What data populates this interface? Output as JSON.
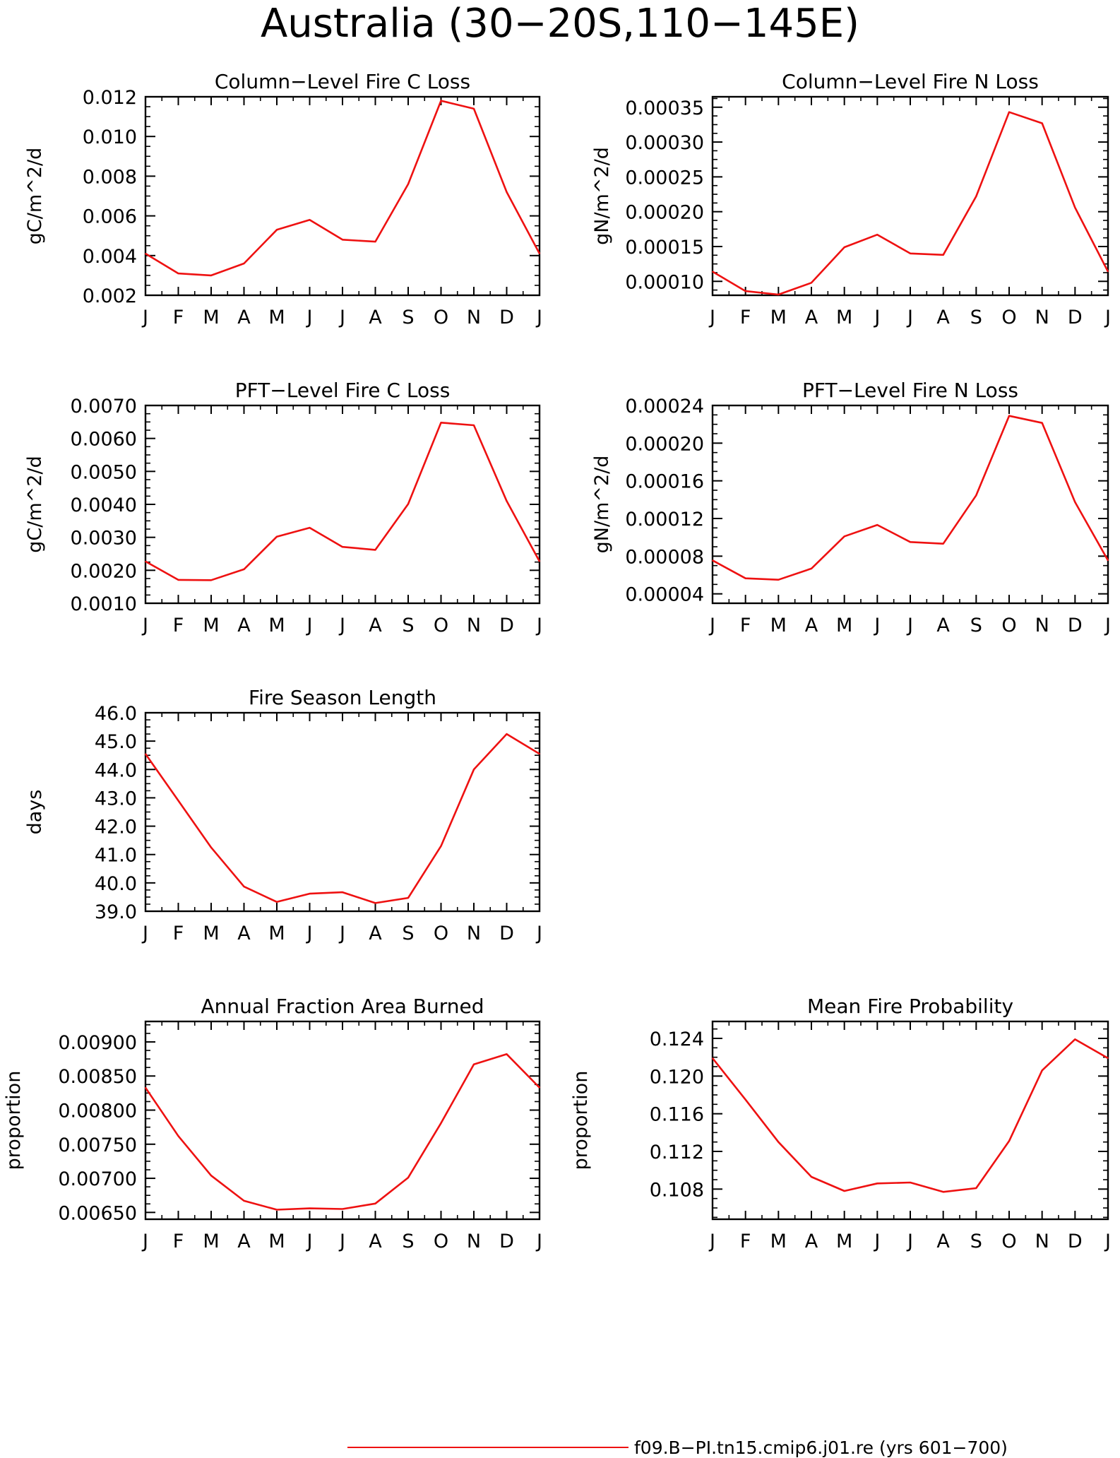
{
  "figure": {
    "title": "Australia (30−20S,110−145E)",
    "line_color": "#ee1111",
    "legend": {
      "label": "f09.B−PI.tn15.cmip6.j01.re (yrs 601−700)"
    }
  },
  "chart_data": [
    {
      "type": "line",
      "title": "Column−Level Fire C Loss",
      "ylabel": "gC/m^2/d",
      "ylim": [
        0.002,
        0.012
      ],
      "yticks": [
        "0.002",
        "0.004",
        "0.006",
        "0.008",
        "0.010",
        "0.012"
      ],
      "x": [
        "J",
        "F",
        "M",
        "A",
        "M",
        "J",
        "J",
        "A",
        "S",
        "O",
        "N",
        "D",
        "J"
      ],
      "series": [
        {
          "values": [
            0.0041,
            0.0031,
            0.003,
            0.0036,
            0.0053,
            0.0058,
            0.0048,
            0.0047,
            0.0076,
            0.0118,
            0.0114,
            0.0072,
            0.0041
          ]
        }
      ]
    },
    {
      "type": "line",
      "title": "Column−Level Fire N Loss",
      "ylabel": "gN/m^2/d",
      "ylim": [
        8e-05,
        0.000365
      ],
      "yticks": [
        "0.00010",
        "0.00015",
        "0.00020",
        "0.00025",
        "0.00030",
        "0.00035"
      ],
      "x": [
        "J",
        "F",
        "M",
        "A",
        "M",
        "J",
        "J",
        "A",
        "S",
        "O",
        "N",
        "D",
        "J"
      ],
      "series": [
        {
          "values": [
            0.000114,
            8.6e-05,
            8.1e-05,
            9.8e-05,
            0.000149,
            0.000167,
            0.00014,
            0.000138,
            0.000222,
            0.000343,
            0.000327,
            0.000206,
            0.000114
          ]
        }
      ]
    },
    {
      "type": "line",
      "title": "PFT−Level Fire C Loss",
      "ylabel": "gC/m^2/d",
      "ylim": [
        0.001,
        0.007
      ],
      "yticks": [
        "0.0010",
        "0.0020",
        "0.0030",
        "0.0040",
        "0.0050",
        "0.0060",
        "0.0070"
      ],
      "x": [
        "J",
        "F",
        "M",
        "A",
        "M",
        "J",
        "J",
        "A",
        "S",
        "O",
        "N",
        "D",
        "J"
      ],
      "series": [
        {
          "values": [
            0.00227,
            0.00171,
            0.0017,
            0.00203,
            0.00302,
            0.00329,
            0.00271,
            0.00262,
            0.00401,
            0.00648,
            0.0064,
            0.0041,
            0.00227
          ]
        }
      ]
    },
    {
      "type": "line",
      "title": "PFT−Level Fire N Loss",
      "ylabel": "gN/m^2/d",
      "ylim": [
        3e-05,
        0.00024
      ],
      "yticks": [
        "0.00004",
        "0.00008",
        "0.00012",
        "0.00016",
        "0.00020",
        "0.00024"
      ],
      "x": [
        "J",
        "F",
        "M",
        "A",
        "M",
        "J",
        "J",
        "A",
        "S",
        "O",
        "N",
        "D",
        "J"
      ],
      "series": [
        {
          "values": [
            7.55e-05,
            5.65e-05,
            5.5e-05,
            6.68e-05,
            0.000101,
            0.0001132,
            9.5e-05,
            9.32e-05,
            0.0001445,
            0.000229,
            0.0002215,
            0.0001375,
            7.55e-05
          ]
        }
      ]
    },
    {
      "type": "line",
      "title": "Fire Season Length",
      "ylabel": "days",
      "ylim": [
        39.0,
        46.0
      ],
      "yticks": [
        "39.0",
        "40.0",
        "41.0",
        "42.0",
        "43.0",
        "44.0",
        "45.0",
        "46.0"
      ],
      "x": [
        "J",
        "F",
        "M",
        "A",
        "M",
        "J",
        "J",
        "A",
        "S",
        "O",
        "N",
        "D",
        "J"
      ],
      "series": [
        {
          "values": [
            44.55,
            42.9,
            41.25,
            39.87,
            39.33,
            39.62,
            39.67,
            39.29,
            39.47,
            41.3,
            44.0,
            45.25,
            44.55
          ]
        }
      ]
    },
    {
      "type": "line",
      "title": "Annual Fraction Area Burned",
      "ylabel": "proportion",
      "ylim": [
        0.0064,
        0.0093
      ],
      "yticks": [
        "0.00650",
        "0.00700",
        "0.00750",
        "0.00800",
        "0.00850",
        "0.00900"
      ],
      "x": [
        "J",
        "F",
        "M",
        "A",
        "M",
        "J",
        "J",
        "A",
        "S",
        "O",
        "N",
        "D",
        "J"
      ],
      "series": [
        {
          "values": [
            0.00833,
            0.00762,
            0.00704,
            0.00667,
            0.00654,
            0.00656,
            0.00655,
            0.00663,
            0.00701,
            0.00781,
            0.00867,
            0.00882,
            0.00833
          ]
        }
      ]
    },
    {
      "type": "line",
      "title": "Mean Fire Probability",
      "ylabel": "proportion",
      "ylim": [
        0.1048,
        0.1258
      ],
      "yticks": [
        "0.108",
        "0.112",
        "0.116",
        "0.120",
        "0.124"
      ],
      "x": [
        "J",
        "F",
        "M",
        "A",
        "M",
        "J",
        "J",
        "A",
        "S",
        "O",
        "N",
        "D",
        "J"
      ],
      "series": [
        {
          "values": [
            0.1219,
            0.1175,
            0.113,
            0.1093,
            0.1078,
            0.1086,
            0.1087,
            0.1077,
            0.1081,
            0.1131,
            0.1206,
            0.1239,
            0.1219
          ]
        }
      ]
    }
  ]
}
